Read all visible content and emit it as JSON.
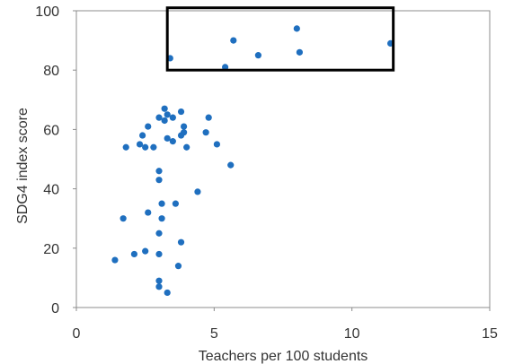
{
  "chart_data": {
    "type": "scatter",
    "title": "",
    "xlabel": "Teachers per 100 students",
    "ylabel": "SDG4 index score",
    "xlim": [
      0,
      15
    ],
    "ylim": [
      0,
      100
    ],
    "xticks": [
      "0",
      "5",
      "10",
      "15"
    ],
    "yticks": [
      "0",
      "20",
      "40",
      "60",
      "80",
      "100"
    ],
    "grid": false,
    "legend": "none",
    "point_color": "#1f6fbf",
    "highlight_box": {
      "x": [
        3.3,
        11.5
      ],
      "y": [
        80,
        101
      ],
      "color": "#000000"
    },
    "series": [
      {
        "points": [
          {
            "x": 3.4,
            "y": 84
          },
          {
            "x": 5.7,
            "y": 90
          },
          {
            "x": 8.0,
            "y": 94
          },
          {
            "x": 6.6,
            "y": 85
          },
          {
            "x": 8.1,
            "y": 86
          },
          {
            "x": 11.4,
            "y": 89
          },
          {
            "x": 5.4,
            "y": 81
          },
          {
            "x": 3.2,
            "y": 67
          },
          {
            "x": 3.3,
            "y": 65
          },
          {
            "x": 3.0,
            "y": 64
          },
          {
            "x": 3.5,
            "y": 64
          },
          {
            "x": 3.2,
            "y": 63
          },
          {
            "x": 3.8,
            "y": 66
          },
          {
            "x": 4.8,
            "y": 64
          },
          {
            "x": 2.6,
            "y": 61
          },
          {
            "x": 3.9,
            "y": 61
          },
          {
            "x": 4.7,
            "y": 59
          },
          {
            "x": 3.8,
            "y": 58
          },
          {
            "x": 3.9,
            "y": 59
          },
          {
            "x": 2.4,
            "y": 58
          },
          {
            "x": 3.3,
            "y": 57
          },
          {
            "x": 3.5,
            "y": 56
          },
          {
            "x": 5.1,
            "y": 55
          },
          {
            "x": 1.8,
            "y": 54
          },
          {
            "x": 2.3,
            "y": 55
          },
          {
            "x": 2.5,
            "y": 54
          },
          {
            "x": 2.8,
            "y": 54
          },
          {
            "x": 4.0,
            "y": 54
          },
          {
            "x": 5.6,
            "y": 48
          },
          {
            "x": 3.0,
            "y": 46
          },
          {
            "x": 3.0,
            "y": 43
          },
          {
            "x": 4.4,
            "y": 39
          },
          {
            "x": 3.1,
            "y": 35
          },
          {
            "x": 3.6,
            "y": 35
          },
          {
            "x": 2.6,
            "y": 32
          },
          {
            "x": 1.7,
            "y": 30
          },
          {
            "x": 3.1,
            "y": 30
          },
          {
            "x": 3.0,
            "y": 25
          },
          {
            "x": 3.8,
            "y": 22
          },
          {
            "x": 2.5,
            "y": 19
          },
          {
            "x": 2.1,
            "y": 18
          },
          {
            "x": 3.0,
            "y": 18
          },
          {
            "x": 1.4,
            "y": 16
          },
          {
            "x": 3.7,
            "y": 14
          },
          {
            "x": 3.0,
            "y": 9
          },
          {
            "x": 3.0,
            "y": 7
          },
          {
            "x": 3.3,
            "y": 5
          }
        ]
      }
    ]
  }
}
